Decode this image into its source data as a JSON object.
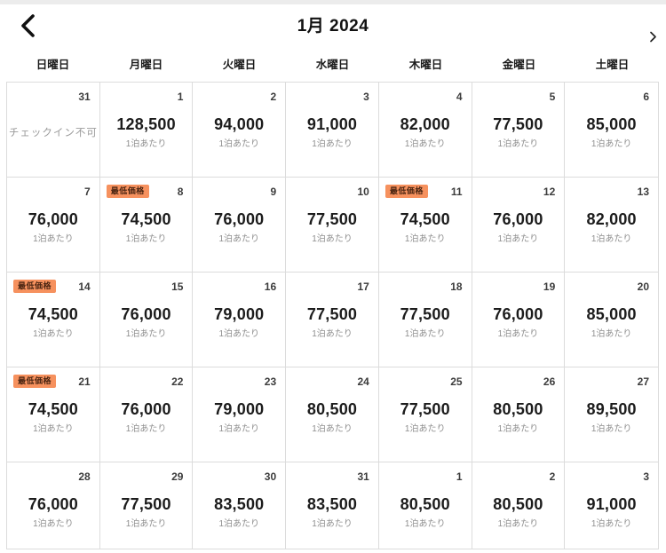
{
  "header": {
    "title": "1月 2024",
    "prev_icon": "chevron-left",
    "next_icon": "chevron-right"
  },
  "weekdays": [
    "日曜日",
    "月曜日",
    "火曜日",
    "水曜日",
    "木曜日",
    "金曜日",
    "土曜日"
  ],
  "labels": {
    "lowest_price_badge": "最低価格",
    "per_night": "1泊あたり",
    "checkin_unavailable": "チェックイン不可"
  },
  "colors": {
    "badge_bg": "#F6915E",
    "badge_text": "#4A2512",
    "price_text": "#1C1C1C",
    "muted_text": "#8F8F8F",
    "border": "#DCDCDC"
  },
  "cells": [
    {
      "date": "31",
      "state": "unavailable"
    },
    {
      "date": "1",
      "price": "128,500"
    },
    {
      "date": "2",
      "price": "94,000"
    },
    {
      "date": "3",
      "price": "91,000"
    },
    {
      "date": "4",
      "price": "82,000"
    },
    {
      "date": "5",
      "price": "77,500"
    },
    {
      "date": "6",
      "price": "85,000"
    },
    {
      "date": "7",
      "price": "76,000"
    },
    {
      "date": "8",
      "price": "74,500",
      "badge": true
    },
    {
      "date": "9",
      "price": "76,000"
    },
    {
      "date": "10",
      "price": "77,500"
    },
    {
      "date": "11",
      "price": "74,500",
      "badge": true
    },
    {
      "date": "12",
      "price": "76,000"
    },
    {
      "date": "13",
      "price": "82,000"
    },
    {
      "date": "14",
      "price": "74,500",
      "badge": true
    },
    {
      "date": "15",
      "price": "76,000"
    },
    {
      "date": "16",
      "price": "79,000"
    },
    {
      "date": "17",
      "price": "77,500"
    },
    {
      "date": "18",
      "price": "77,500"
    },
    {
      "date": "19",
      "price": "76,000"
    },
    {
      "date": "20",
      "price": "85,000"
    },
    {
      "date": "21",
      "price": "74,500",
      "badge": true
    },
    {
      "date": "22",
      "price": "76,000"
    },
    {
      "date": "23",
      "price": "79,000"
    },
    {
      "date": "24",
      "price": "80,500"
    },
    {
      "date": "25",
      "price": "77,500"
    },
    {
      "date": "26",
      "price": "80,500"
    },
    {
      "date": "27",
      "price": "89,500"
    },
    {
      "date": "28",
      "price": "76,000"
    },
    {
      "date": "29",
      "price": "77,500"
    },
    {
      "date": "30",
      "price": "83,500"
    },
    {
      "date": "31",
      "price": "83,500"
    },
    {
      "date": "1",
      "price": "80,500"
    },
    {
      "date": "2",
      "price": "80,500"
    },
    {
      "date": "3",
      "price": "91,000"
    }
  ]
}
